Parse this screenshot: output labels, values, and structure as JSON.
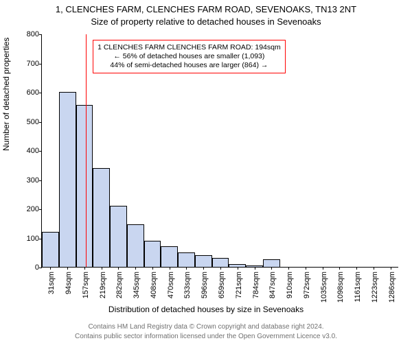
{
  "title_line1": "1, CLENCHES FARM, CLENCHES FARM ROAD, SEVENOAKS, TN13 2NT",
  "title_line2": "Size of property relative to detached houses in Sevenoaks",
  "ylabel": "Number of detached properties",
  "xlabel": "Distribution of detached houses by size in Sevenoaks",
  "chart": {
    "type": "histogram",
    "ylim": [
      0,
      800
    ],
    "ytick_step": 100,
    "xticks": [
      "31sqm",
      "94sqm",
      "157sqm",
      "219sqm",
      "282sqm",
      "345sqm",
      "408sqm",
      "470sqm",
      "533sqm",
      "596sqm",
      "659sqm",
      "721sqm",
      "784sqm",
      "847sqm",
      "910sqm",
      "972sqm",
      "1035sqm",
      "1098sqm",
      "1161sqm",
      "1223sqm",
      "1286sqm"
    ],
    "values": [
      120,
      600,
      555,
      340,
      210,
      145,
      90,
      70,
      50,
      40,
      30,
      10,
      5,
      25,
      0,
      0,
      0,
      0,
      0,
      0,
      0
    ],
    "bar_fill": "#c9d6f0",
    "bar_stroke": "#000000",
    "background_color": "#ffffff",
    "bar_width_ratio": 1.0,
    "reference_line_x_sqm": 194,
    "reference_line_color": "#ff0000",
    "reference_line_width": 1
  },
  "annotation": {
    "line1": "1 CLENCHES FARM CLENCHES FARM ROAD: 194sqm",
    "line2": "← 56% of detached houses are smaller (1,093)",
    "line3": "44% of semi-detached houses are larger (864) →",
    "border_color": "#ff0000"
  },
  "footer_line1": "Contains HM Land Registry data © Crown copyright and database right 2024.",
  "footer_line2": "Contains public sector information licensed under the Open Government Licence v3.0."
}
